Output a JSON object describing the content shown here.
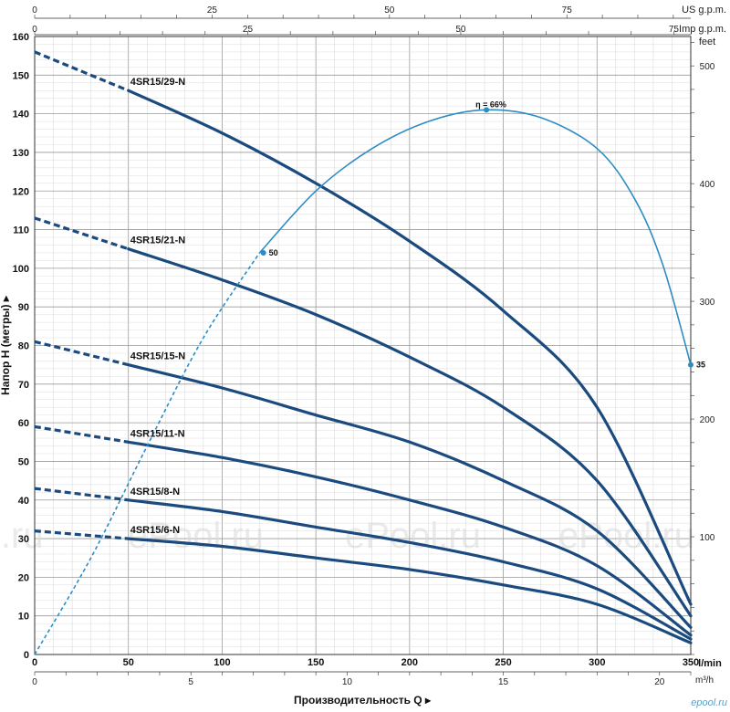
{
  "chart_data": {
    "type": "line",
    "top_axes": {
      "us_gpm": {
        "label": "US g.p.m.",
        "ticks": [
          0,
          25,
          50,
          75
        ]
      },
      "imp_gpm": {
        "label": "Imp g.p.m.",
        "ticks": [
          0,
          25,
          50,
          75
        ]
      }
    },
    "right_axis": {
      "label": "feet",
      "ticks": [
        100,
        200,
        300,
        400,
        500
      ]
    },
    "x_axis": {
      "label": "l/min",
      "title": "Производительность Q",
      "range": [
        0,
        350
      ],
      "ticks": [
        0,
        50,
        100,
        150,
        200,
        250,
        300,
        350
      ]
    },
    "x_axis_m3h": {
      "label": "m³/h",
      "ticks": [
        0,
        5,
        10,
        15,
        20
      ]
    },
    "y_axis": {
      "title": "Напор H (метры)",
      "range": [
        0,
        160
      ],
      "ticks": [
        0,
        10,
        20,
        30,
        40,
        50,
        60,
        70,
        80,
        90,
        100,
        110,
        120,
        130,
        140,
        150,
        160
      ]
    },
    "grid": true,
    "series": [
      {
        "name": "4SR15/29-N",
        "dashed_until": 50,
        "points": [
          [
            0,
            156
          ],
          [
            50,
            146
          ],
          [
            100,
            135
          ],
          [
            150,
            122
          ],
          [
            200,
            107
          ],
          [
            250,
            89
          ],
          [
            300,
            64
          ],
          [
            350,
            13
          ]
        ]
      },
      {
        "name": "4SR15/21-N",
        "dashed_until": 50,
        "points": [
          [
            0,
            113
          ],
          [
            50,
            105
          ],
          [
            100,
            97
          ],
          [
            150,
            88
          ],
          [
            200,
            77
          ],
          [
            250,
            64
          ],
          [
            300,
            45
          ],
          [
            350,
            10
          ]
        ]
      },
      {
        "name": "4SR15/15-N",
        "dashed_until": 50,
        "points": [
          [
            0,
            81
          ],
          [
            50,
            75
          ],
          [
            100,
            69
          ],
          [
            150,
            62
          ],
          [
            200,
            55
          ],
          [
            250,
            45
          ],
          [
            300,
            32
          ],
          [
            350,
            7
          ]
        ]
      },
      {
        "name": "4SR15/11-N",
        "dashed_until": 50,
        "points": [
          [
            0,
            59
          ],
          [
            50,
            55
          ],
          [
            100,
            51
          ],
          [
            150,
            46
          ],
          [
            200,
            40
          ],
          [
            250,
            33
          ],
          [
            300,
            23
          ],
          [
            350,
            5
          ]
        ]
      },
      {
        "name": "4SR15/8-N",
        "dashed_until": 50,
        "points": [
          [
            0,
            43
          ],
          [
            50,
            40
          ],
          [
            100,
            37
          ],
          [
            150,
            33
          ],
          [
            200,
            29
          ],
          [
            250,
            24
          ],
          [
            300,
            17
          ],
          [
            350,
            4
          ]
        ]
      },
      {
        "name": "4SR15/6-N",
        "dashed_until": 50,
        "points": [
          [
            0,
            32
          ],
          [
            50,
            30
          ],
          [
            100,
            28
          ],
          [
            150,
            25
          ],
          [
            200,
            22
          ],
          [
            250,
            18
          ],
          [
            300,
            13
          ],
          [
            350,
            3
          ]
        ]
      }
    ],
    "efficiency": {
      "dashed_until": 120,
      "points": [
        [
          0,
          0
        ],
        [
          30,
          25
        ],
        [
          60,
          54
        ],
        [
          90,
          82
        ],
        [
          120,
          104
        ],
        [
          150,
          120
        ],
        [
          180,
          131
        ],
        [
          210,
          138
        ],
        [
          240,
          141
        ],
        [
          270,
          139
        ],
        [
          300,
          131
        ],
        [
          320,
          118
        ],
        [
          335,
          101
        ],
        [
          350,
          75
        ]
      ],
      "markers": [
        {
          "x": 122,
          "y": 104,
          "label": "50"
        },
        {
          "x": 241,
          "y": 141,
          "label": "η = 66%"
        },
        {
          "x": 350,
          "y": 75,
          "label": "35"
        }
      ]
    },
    "watermarks": [
      "l.ru",
      "ePool.ru",
      "ePool.ru",
      "ePool.ru"
    ],
    "brand": "epool.ru",
    "colors": {
      "curve": "#1b4a7e",
      "efficiency": "#2d8cc4",
      "grid_major": "#9a9a9a",
      "grid_minor": "#d4d4d4"
    }
  }
}
